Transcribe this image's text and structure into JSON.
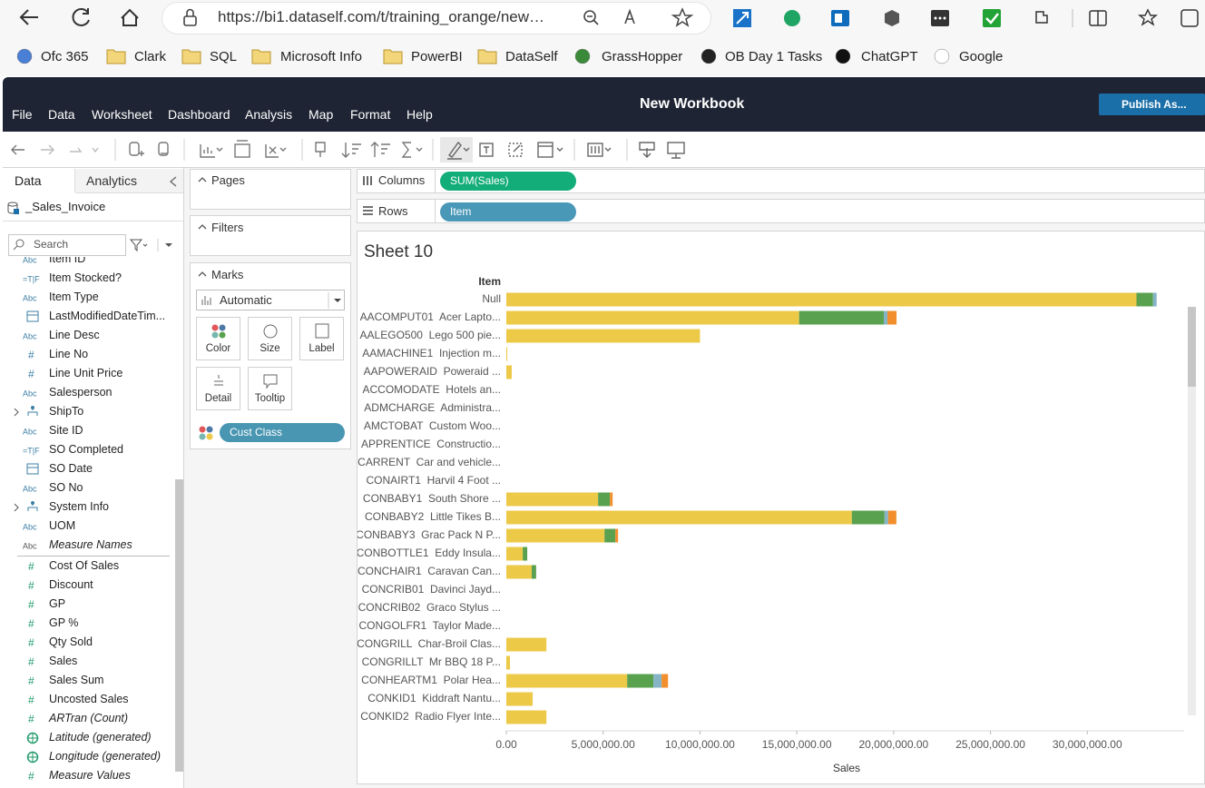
{
  "browser": {
    "url": "https://bi1.dataself.com/t/training_orange/new…",
    "bookmarks": [
      "Ofc 365",
      "Clark",
      "SQL",
      "Microsoft Info",
      "PowerBI",
      "DataSelf",
      "GrassHopper",
      "OB Day 1 Tasks",
      "ChatGPT",
      "Google"
    ]
  },
  "app": {
    "menu": [
      "File",
      "Data",
      "Worksheet",
      "Dashboard",
      "Analysis",
      "Map",
      "Format",
      "Help"
    ],
    "title": "New Workbook",
    "publish": "Publish As..."
  },
  "data_pane": {
    "tabs": [
      "Data",
      "Analytics"
    ],
    "source": "_Sales_Invoice",
    "search": "Search",
    "fields": [
      {
        "icon": "Abc",
        "name": "Item ID",
        "role": "dimension"
      },
      {
        "icon": "=T|F",
        "name": "Item Stocked?",
        "role": "dimension"
      },
      {
        "icon": "Abc",
        "name": "Item Type",
        "role": "dimension"
      },
      {
        "icon": "date",
        "name": "LastModifiedDateTim...",
        "role": "dimension"
      },
      {
        "icon": "Abc",
        "name": "Line Desc",
        "role": "dimension"
      },
      {
        "icon": "#",
        "name": "Line No",
        "role": "dimension"
      },
      {
        "icon": "#",
        "name": "Line Unit Price",
        "role": "dimension"
      },
      {
        "icon": "Abc",
        "name": "Salesperson",
        "role": "dimension"
      },
      {
        "icon": "hier",
        "name": "ShipTo",
        "role": "dimension"
      },
      {
        "icon": "Abc",
        "name": "Site ID",
        "role": "dimension"
      },
      {
        "icon": "=T|F",
        "name": "SO Completed",
        "role": "dimension"
      },
      {
        "icon": "date",
        "name": "SO Date",
        "role": "dimension"
      },
      {
        "icon": "Abc",
        "name": "SO No",
        "role": "dimension"
      },
      {
        "icon": "hier",
        "name": "System Info",
        "role": "dimension"
      },
      {
        "icon": "Abc",
        "name": "UOM",
        "role": "dimension"
      },
      {
        "icon": "Abc",
        "name": "Measure Names",
        "role": "dimension",
        "italic": true
      },
      {
        "icon": "#",
        "name": "Cost Of Sales",
        "role": "measure"
      },
      {
        "icon": "#",
        "name": "Discount",
        "role": "measure"
      },
      {
        "icon": "#",
        "name": "GP",
        "role": "measure"
      },
      {
        "icon": "#",
        "name": "GP %",
        "role": "measure"
      },
      {
        "icon": "#",
        "name": "Qty Sold",
        "role": "measure"
      },
      {
        "icon": "#",
        "name": "Sales",
        "role": "measure"
      },
      {
        "icon": "#",
        "name": "Sales Sum",
        "role": "measure"
      },
      {
        "icon": "#",
        "name": "Uncosted Sales",
        "role": "measure"
      },
      {
        "icon": "#",
        "name": "ARTran (Count)",
        "role": "measure",
        "italic": true
      },
      {
        "icon": "geo",
        "name": "Latitude (generated)",
        "role": "measure",
        "italic": true
      },
      {
        "icon": "geo",
        "name": "Longitude (generated)",
        "role": "measure",
        "italic": true
      },
      {
        "icon": "#",
        "name": "Measure Values",
        "role": "measure",
        "italic": true
      }
    ]
  },
  "cards": {
    "pages": "Pages",
    "filters": "Filters",
    "marks": "Marks",
    "mark_type": "Automatic",
    "buttons": [
      "Color",
      "Size",
      "Label",
      "Detail",
      "Tooltip"
    ],
    "color_pill": "Cust Class"
  },
  "shelves": {
    "columns_label": "Columns",
    "columns_pill": "SUM(Sales)",
    "rows_label": "Rows",
    "rows_pill": "Item"
  },
  "chart_data": {
    "type": "bar",
    "orientation": "horizontal",
    "stacked": true,
    "title": "Sheet 10",
    "y_header": "Item",
    "x_label": "Sales",
    "categories": [
      "Null",
      "AACOMPUT01  Acer Lapto...",
      "AALEGO500  Lego 500 pie...",
      "AAMACHINE1  Injection m...",
      "AAPOWERAID  Poweraid ...",
      "ACCOMODATE  Hotels an...",
      "ADMCHARGE  Administra...",
      "AMCTOBAT  Custom Woo...",
      "APPRENTICE  Constructio...",
      "CARRENT  Car and vehicle...",
      "CONAIRT1  Harvil 4 Foot ...",
      "CONBABY1  South Shore ...",
      "CONBABY2  Little Tikes B...",
      "CONBABY3  Grac Pack N P...",
      "CONBOTTLE1  Eddy Insula...",
      "CONCHAIR1  Caravan Can...",
      "CONCRIB01  Davinci Jayd...",
      "CONCRIB02  Graco Stylus ...",
      "CONGOLFR1  Taylor Made...",
      "CONGRILL  Char-Broil Clas...",
      "CONGRILLT  Mr BBQ 18 P...",
      "CONHEARTM1  Polar Hea...",
      "CONKID1  Kiddraft Nantu...",
      "CONKID2  Radio Flyer Inte..."
    ],
    "series": [
      {
        "color": "#edc948",
        "values": [
          32540000,
          15120000,
          10000000,
          50000,
          280000,
          null,
          null,
          null,
          null,
          null,
          null,
          4740000,
          17840000,
          5070000,
          850000,
          1310000,
          null,
          null,
          null,
          2070000,
          190000,
          6240000,
          1360000,
          2070000
        ]
      },
      {
        "color": "#59a14f",
        "values": [
          850000,
          4370000,
          null,
          null,
          null,
          null,
          null,
          null,
          null,
          null,
          null,
          610000,
          1690000,
          560000,
          230000,
          230000,
          null,
          null,
          null,
          null,
          null,
          1360000,
          null,
          null
        ]
      },
      {
        "color": "#86b4c6",
        "values": [
          190000,
          190000,
          null,
          null,
          null,
          null,
          null,
          null,
          null,
          null,
          null,
          null,
          190000,
          null,
          null,
          null,
          null,
          null,
          null,
          null,
          null,
          420000,
          null,
          null
        ]
      },
      {
        "color": "#f28e2b",
        "values": [
          null,
          470000,
          null,
          null,
          null,
          null,
          null,
          null,
          null,
          null,
          null,
          140000,
          420000,
          140000,
          null,
          null,
          null,
          null,
          null,
          null,
          null,
          330000,
          null,
          null
        ]
      }
    ],
    "xlim": [
      0,
      35000000
    ],
    "xticks": [
      {
        "value": 0,
        "label": "0.00"
      },
      {
        "value": 5000000,
        "label": "5,000,000.00"
      },
      {
        "value": 10000000,
        "label": "10,000,000.00"
      },
      {
        "value": 15000000,
        "label": "15,000,000.00"
      },
      {
        "value": 20000000,
        "label": "20,000,000.00"
      },
      {
        "value": 25000000,
        "label": "25,000,000.00"
      },
      {
        "value": 30000000,
        "label": "30,000,000.00"
      }
    ],
    "grid": false
  }
}
